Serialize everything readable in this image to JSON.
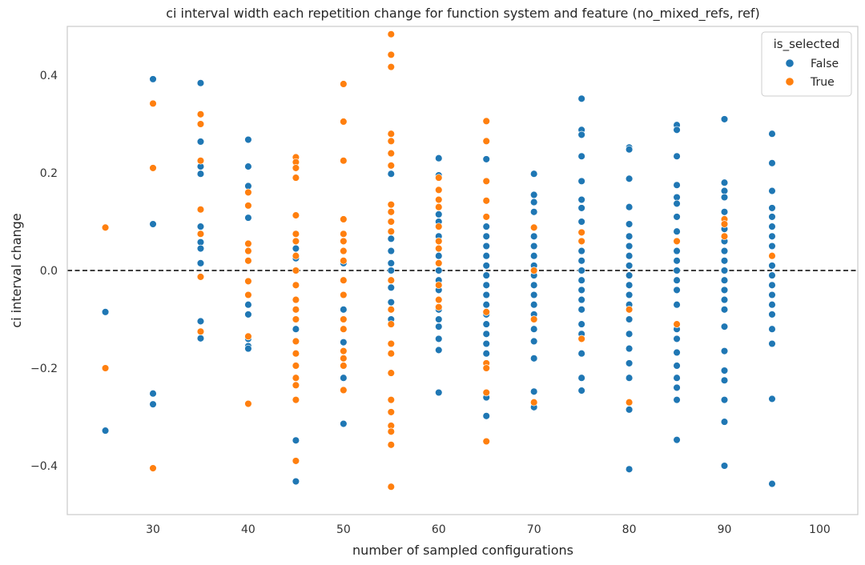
{
  "chart_data": {
    "type": "scatter",
    "title": "ci interval width each repetition change for function system and feature (no_mixed_refs, ref)",
    "xlabel": "number of sampled configurations",
    "ylabel": "ci interval change",
    "xlim": [
      21,
      104
    ],
    "ylim": [
      -0.5,
      0.5
    ],
    "xticks": [
      30,
      40,
      50,
      60,
      70,
      80,
      90,
      100
    ],
    "yticks": [
      -0.4,
      -0.2,
      0.0,
      0.2,
      0.4
    ],
    "ytick_labels": [
      "−0.4",
      "−0.2",
      "0.0",
      "0.2",
      "0.4"
    ],
    "grid": false,
    "reference_line": {
      "y": 0.0,
      "style": "dashed",
      "color": "#000000"
    },
    "legend": {
      "title": "is_selected",
      "position": "top-right"
    },
    "series": [
      {
        "name": "False",
        "color": "#1f77b4",
        "points": [
          [
            25,
            -0.085
          ],
          [
            25,
            -0.328
          ],
          [
            30,
            0.392
          ],
          [
            30,
            0.095
          ],
          [
            30,
            -0.252
          ],
          [
            30,
            -0.274
          ],
          [
            35,
            0.384
          ],
          [
            35,
            0.264
          ],
          [
            35,
            0.213
          ],
          [
            35,
            0.198
          ],
          [
            35,
            0.09
          ],
          [
            35,
            0.058
          ],
          [
            35,
            0.045
          ],
          [
            35,
            0.015
          ],
          [
            35,
            -0.104
          ],
          [
            35,
            -0.139
          ],
          [
            40,
            0.268
          ],
          [
            40,
            0.213
          ],
          [
            40,
            0.173
          ],
          [
            40,
            0.108
          ],
          [
            40,
            -0.07
          ],
          [
            40,
            -0.09
          ],
          [
            40,
            -0.14
          ],
          [
            40,
            -0.155
          ],
          [
            40,
            -0.16
          ],
          [
            45,
            0.045
          ],
          [
            45,
            0.025
          ],
          [
            45,
            -0.12
          ],
          [
            45,
            -0.348
          ],
          [
            45,
            -0.432
          ],
          [
            50,
            0.015
          ],
          [
            50,
            -0.08
          ],
          [
            50,
            -0.147
          ],
          [
            50,
            -0.22
          ],
          [
            50,
            -0.314
          ],
          [
            55,
            0.198
          ],
          [
            55,
            0.065
          ],
          [
            55,
            0.04
          ],
          [
            55,
            0.015
          ],
          [
            55,
            0.0
          ],
          [
            55,
            -0.035
          ],
          [
            55,
            -0.065
          ],
          [
            55,
            -0.1
          ],
          [
            60,
            0.23
          ],
          [
            60,
            0.195
          ],
          [
            60,
            0.115
          ],
          [
            60,
            0.1
          ],
          [
            60,
            0.07
          ],
          [
            60,
            0.03
          ],
          [
            60,
            0.0
          ],
          [
            60,
            -0.02
          ],
          [
            60,
            -0.04
          ],
          [
            60,
            -0.08
          ],
          [
            60,
            -0.1
          ],
          [
            60,
            -0.115
          ],
          [
            60,
            -0.14
          ],
          [
            60,
            -0.163
          ],
          [
            60,
            -0.25
          ],
          [
            65,
            0.228
          ],
          [
            65,
            0.09
          ],
          [
            65,
            0.07
          ],
          [
            65,
            0.05
          ],
          [
            65,
            0.03
          ],
          [
            65,
            0.01
          ],
          [
            65,
            -0.01
          ],
          [
            65,
            -0.03
          ],
          [
            65,
            -0.05
          ],
          [
            65,
            -0.07
          ],
          [
            65,
            -0.09
          ],
          [
            65,
            -0.11
          ],
          [
            65,
            -0.13
          ],
          [
            65,
            -0.15
          ],
          [
            65,
            -0.17
          ],
          [
            65,
            -0.26
          ],
          [
            65,
            -0.298
          ],
          [
            70,
            0.198
          ],
          [
            70,
            0.155
          ],
          [
            70,
            0.14
          ],
          [
            70,
            0.12
          ],
          [
            70,
            0.07
          ],
          [
            70,
            0.05
          ],
          [
            70,
            0.03
          ],
          [
            70,
            0.01
          ],
          [
            70,
            -0.01
          ],
          [
            70,
            -0.03
          ],
          [
            70,
            -0.05
          ],
          [
            70,
            -0.07
          ],
          [
            70,
            -0.09
          ],
          [
            70,
            -0.12
          ],
          [
            70,
            -0.145
          ],
          [
            70,
            -0.18
          ],
          [
            70,
            -0.248
          ],
          [
            70,
            -0.28
          ],
          [
            75,
            0.352
          ],
          [
            75,
            0.288
          ],
          [
            75,
            0.278
          ],
          [
            75,
            0.234
          ],
          [
            75,
            0.183
          ],
          [
            75,
            0.145
          ],
          [
            75,
            0.128
          ],
          [
            75,
            0.1
          ],
          [
            75,
            0.06
          ],
          [
            75,
            0.04
          ],
          [
            75,
            0.02
          ],
          [
            75,
            0.0
          ],
          [
            75,
            -0.02
          ],
          [
            75,
            -0.04
          ],
          [
            75,
            -0.06
          ],
          [
            75,
            -0.08
          ],
          [
            75,
            -0.11
          ],
          [
            75,
            -0.13
          ],
          [
            75,
            -0.17
          ],
          [
            75,
            -0.22
          ],
          [
            75,
            -0.246
          ],
          [
            80,
            0.252
          ],
          [
            80,
            0.248
          ],
          [
            80,
            0.188
          ],
          [
            80,
            0.13
          ],
          [
            80,
            0.095
          ],
          [
            80,
            0.07
          ],
          [
            80,
            0.05
          ],
          [
            80,
            0.03
          ],
          [
            80,
            0.01
          ],
          [
            80,
            -0.01
          ],
          [
            80,
            -0.03
          ],
          [
            80,
            -0.05
          ],
          [
            80,
            -0.07
          ],
          [
            80,
            -0.1
          ],
          [
            80,
            -0.13
          ],
          [
            80,
            -0.16
          ],
          [
            80,
            -0.19
          ],
          [
            80,
            -0.22
          ],
          [
            80,
            -0.285
          ],
          [
            80,
            -0.407
          ],
          [
            85,
            0.298
          ],
          [
            85,
            0.288
          ],
          [
            85,
            0.234
          ],
          [
            85,
            0.175
          ],
          [
            85,
            0.15
          ],
          [
            85,
            0.137
          ],
          [
            85,
            0.11
          ],
          [
            85,
            0.08
          ],
          [
            85,
            0.06
          ],
          [
            85,
            0.04
          ],
          [
            85,
            0.02
          ],
          [
            85,
            0.0
          ],
          [
            85,
            -0.02
          ],
          [
            85,
            -0.04
          ],
          [
            85,
            -0.07
          ],
          [
            85,
            -0.12
          ],
          [
            85,
            -0.14
          ],
          [
            85,
            -0.168
          ],
          [
            85,
            -0.195
          ],
          [
            85,
            -0.22
          ],
          [
            85,
            -0.24
          ],
          [
            85,
            -0.265
          ],
          [
            85,
            -0.347
          ],
          [
            90,
            0.31
          ],
          [
            90,
            0.18
          ],
          [
            90,
            0.163
          ],
          [
            90,
            0.15
          ],
          [
            90,
            0.12
          ],
          [
            90,
            0.085
          ],
          [
            90,
            0.06
          ],
          [
            90,
            0.04
          ],
          [
            90,
            0.02
          ],
          [
            90,
            0.0
          ],
          [
            90,
            -0.02
          ],
          [
            90,
            -0.04
          ],
          [
            90,
            -0.06
          ],
          [
            90,
            -0.08
          ],
          [
            90,
            -0.115
          ],
          [
            90,
            -0.165
          ],
          [
            90,
            -0.205
          ],
          [
            90,
            -0.225
          ],
          [
            90,
            -0.265
          ],
          [
            90,
            -0.31
          ],
          [
            90,
            -0.4
          ],
          [
            95,
            0.28
          ],
          [
            95,
            0.22
          ],
          [
            95,
            0.163
          ],
          [
            95,
            0.128
          ],
          [
            95,
            0.11
          ],
          [
            95,
            0.09
          ],
          [
            95,
            0.07
          ],
          [
            95,
            0.05
          ],
          [
            95,
            0.03
          ],
          [
            95,
            0.01
          ],
          [
            95,
            -0.01
          ],
          [
            95,
            -0.03
          ],
          [
            95,
            -0.05
          ],
          [
            95,
            -0.07
          ],
          [
            95,
            -0.09
          ],
          [
            95,
            -0.12
          ],
          [
            95,
            -0.15
          ],
          [
            95,
            -0.263
          ],
          [
            95,
            -0.437
          ]
        ]
      },
      {
        "name": "True",
        "color": "#ff7f0e",
        "points": [
          [
            25,
            0.088
          ],
          [
            25,
            -0.2
          ],
          [
            30,
            0.342
          ],
          [
            30,
            0.21
          ],
          [
            30,
            -0.405
          ],
          [
            35,
            0.32
          ],
          [
            35,
            0.3
          ],
          [
            35,
            0.225
          ],
          [
            35,
            0.125
          ],
          [
            35,
            0.075
          ],
          [
            35,
            -0.013
          ],
          [
            35,
            -0.125
          ],
          [
            40,
            0.16
          ],
          [
            40,
            0.133
          ],
          [
            40,
            0.055
          ],
          [
            40,
            0.04
          ],
          [
            40,
            0.02
          ],
          [
            40,
            -0.022
          ],
          [
            40,
            -0.05
          ],
          [
            40,
            -0.135
          ],
          [
            40,
            -0.273
          ],
          [
            45,
            0.232
          ],
          [
            45,
            0.222
          ],
          [
            45,
            0.21
          ],
          [
            45,
            0.19
          ],
          [
            45,
            0.113
          ],
          [
            45,
            0.075
          ],
          [
            45,
            0.06
          ],
          [
            45,
            0.03
          ],
          [
            45,
            0.0
          ],
          [
            45,
            -0.03
          ],
          [
            45,
            -0.06
          ],
          [
            45,
            -0.08
          ],
          [
            45,
            -0.1
          ],
          [
            45,
            -0.145
          ],
          [
            45,
            -0.17
          ],
          [
            45,
            -0.195
          ],
          [
            45,
            -0.22
          ],
          [
            45,
            -0.235
          ],
          [
            45,
            -0.265
          ],
          [
            45,
            -0.39
          ],
          [
            50,
            0.382
          ],
          [
            50,
            0.305
          ],
          [
            50,
            0.225
          ],
          [
            50,
            0.105
          ],
          [
            50,
            0.075
          ],
          [
            50,
            0.06
          ],
          [
            50,
            0.04
          ],
          [
            50,
            0.02
          ],
          [
            50,
            -0.02
          ],
          [
            50,
            -0.05
          ],
          [
            50,
            -0.1
          ],
          [
            50,
            -0.12
          ],
          [
            50,
            -0.165
          ],
          [
            50,
            -0.18
          ],
          [
            50,
            -0.195
          ],
          [
            50,
            -0.245
          ],
          [
            55,
            0.484
          ],
          [
            55,
            0.442
          ],
          [
            55,
            0.417
          ],
          [
            55,
            0.28
          ],
          [
            55,
            0.265
          ],
          [
            55,
            0.24
          ],
          [
            55,
            0.215
          ],
          [
            55,
            0.135
          ],
          [
            55,
            0.12
          ],
          [
            55,
            0.1
          ],
          [
            55,
            0.08
          ],
          [
            55,
            -0.02
          ],
          [
            55,
            -0.08
          ],
          [
            55,
            -0.11
          ],
          [
            55,
            -0.15
          ],
          [
            55,
            -0.17
          ],
          [
            55,
            -0.21
          ],
          [
            55,
            -0.265
          ],
          [
            55,
            -0.29
          ],
          [
            55,
            -0.318
          ],
          [
            55,
            -0.33
          ],
          [
            55,
            -0.357
          ],
          [
            55,
            -0.443
          ],
          [
            60,
            0.19
          ],
          [
            60,
            0.165
          ],
          [
            60,
            0.145
          ],
          [
            60,
            0.13
          ],
          [
            60,
            0.09
          ],
          [
            60,
            0.06
          ],
          [
            60,
            0.045
          ],
          [
            60,
            0.015
          ],
          [
            60,
            -0.03
          ],
          [
            60,
            -0.06
          ],
          [
            60,
            -0.075
          ],
          [
            65,
            0.306
          ],
          [
            65,
            0.265
          ],
          [
            65,
            0.183
          ],
          [
            65,
            0.143
          ],
          [
            65,
            0.11
          ],
          [
            65,
            -0.085
          ],
          [
            65,
            -0.19
          ],
          [
            65,
            -0.2
          ],
          [
            65,
            -0.25
          ],
          [
            65,
            -0.35
          ],
          [
            70,
            0.088
          ],
          [
            70,
            0.0
          ],
          [
            70,
            -0.1
          ],
          [
            70,
            -0.27
          ],
          [
            75,
            0.078
          ],
          [
            75,
            0.06
          ],
          [
            75,
            -0.14
          ],
          [
            80,
            -0.08
          ],
          [
            80,
            -0.27
          ],
          [
            85,
            -0.11
          ],
          [
            85,
            0.06
          ],
          [
            90,
            0.105
          ],
          [
            90,
            0.095
          ],
          [
            90,
            0.07
          ],
          [
            95,
            0.03
          ]
        ]
      }
    ]
  }
}
